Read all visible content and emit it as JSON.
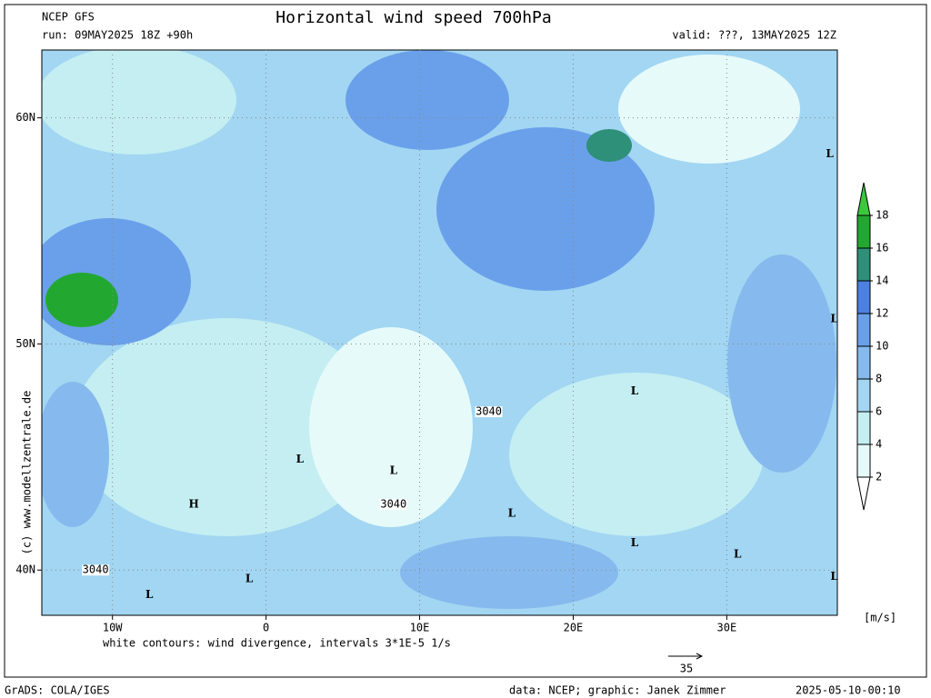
{
  "header": {
    "model": "NCEP GFS",
    "run": "run: 09MAY2025 18Z +90h",
    "title": "Horizontal wind speed 700hPa",
    "valid": "valid: ???, 13MAY2025 12Z"
  },
  "map": {
    "xlim": [
      -14.6,
      37.2
    ],
    "ylim": [
      38.0,
      63.0
    ],
    "xticks": [
      {
        "value": -10,
        "label": "10W"
      },
      0,
      {
        "value": 10,
        "label": "10E"
      },
      {
        "value": 20,
        "label": "20E"
      },
      {
        "value": 30,
        "label": "30E"
      }
    ],
    "yticks": [
      {
        "value": 60,
        "label": "60N"
      },
      {
        "value": 50,
        "label": "50N"
      },
      {
        "value": 40,
        "label": "40N"
      }
    ],
    "pressure_centers": [
      {
        "label": "L",
        "lon": 36.7,
        "lat": 58.4
      },
      {
        "label": "L",
        "lon": 37.0,
        "lat": 51.1
      },
      {
        "label": "L",
        "lon": 24.0,
        "lat": 47.9
      },
      {
        "label": "L",
        "lon": 2.2,
        "lat": 44.9
      },
      {
        "label": "L",
        "lon": 8.3,
        "lat": 44.4
      },
      {
        "label": "H",
        "lon": -4.7,
        "lat": 42.9
      },
      {
        "label": "L",
        "lon": 16.0,
        "lat": 42.5
      },
      {
        "label": "L",
        "lon": 24.0,
        "lat": 41.2
      },
      {
        "label": "L",
        "lon": 30.7,
        "lat": 40.7
      },
      {
        "label": "L",
        "lon": -1.1,
        "lat": 39.6
      },
      {
        "label": "L",
        "lon": -7.6,
        "lat": 38.9
      },
      {
        "label": "L",
        "lon": 37.0,
        "lat": 39.7
      }
    ],
    "contour_labels": [
      {
        "label": "3040",
        "lon": 14.5,
        "lat": 47.0
      },
      {
        "label": "3040",
        "lon": 8.3,
        "lat": 42.9
      },
      {
        "label": "3040",
        "lon": -11.1,
        "lat": 40.0
      }
    ]
  },
  "colorbar": {
    "levels": [
      2,
      4,
      6,
      8,
      10,
      12,
      14,
      16,
      18
    ],
    "colors": [
      "#ffffff",
      "#e6fafa",
      "#c4eef2",
      "#a2d6f2",
      "#86baee",
      "#6aa0ea",
      "#4c80e2",
      "#2e9078",
      "#22a830",
      "#3cc83c"
    ],
    "unit": "[m/s]"
  },
  "footer": {
    "note": "white contours: wind divergence, intervals 3*1E-5 1/s",
    "reference_vector": "35",
    "credit": "(c) www.modellzentrale.de",
    "software": "GrADS: COLA/IGES",
    "source": "data: NCEP; graphic: Janek Zimmer",
    "timestamp": "2025-05-10-00:10"
  }
}
